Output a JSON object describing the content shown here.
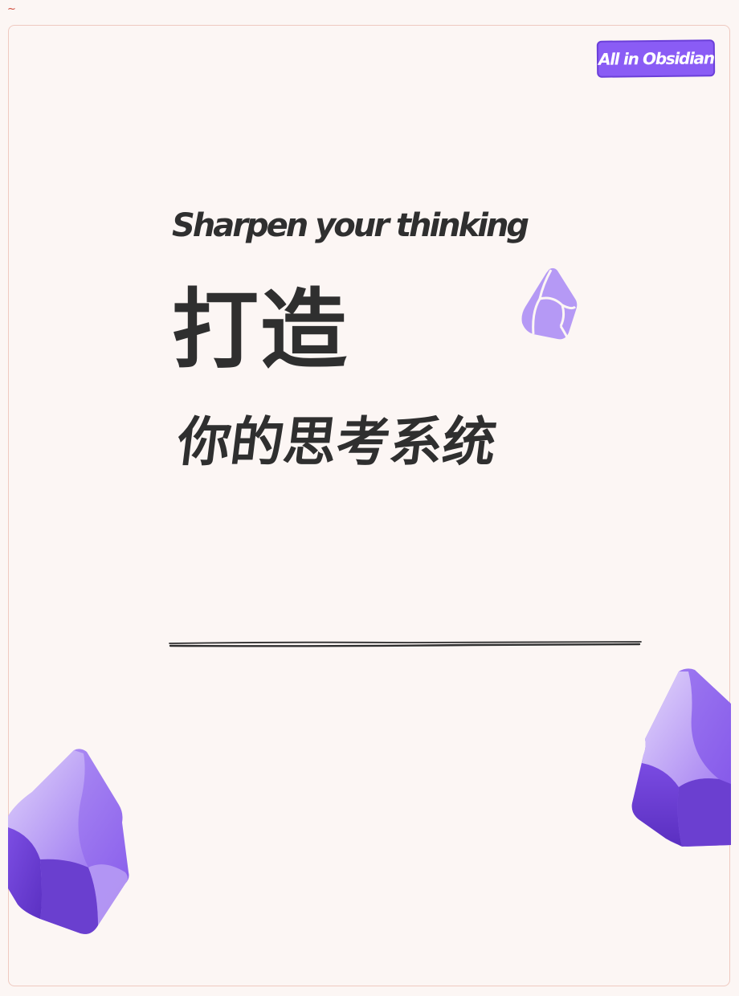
{
  "corner_mark": "~",
  "badge": {
    "label": "All in Obsidian"
  },
  "cover": {
    "subtitle": "Sharpen your thinking",
    "headline": "打造",
    "subheadline": "你的思考系统"
  },
  "colors": {
    "background": "#fcf6f4",
    "frame_border": "#efc9c0",
    "text": "#2f2f2f",
    "accent_purple": "#8a5cf5",
    "crystal_light": "#c9b4f7",
    "crystal_dark": "#6a3fcf"
  },
  "decorations": {
    "small_crystal_icon": "obsidian-crystal-icon",
    "left_crystal_icon": "obsidian-crystal-icon",
    "right_crystal_icon": "obsidian-crystal-icon"
  }
}
